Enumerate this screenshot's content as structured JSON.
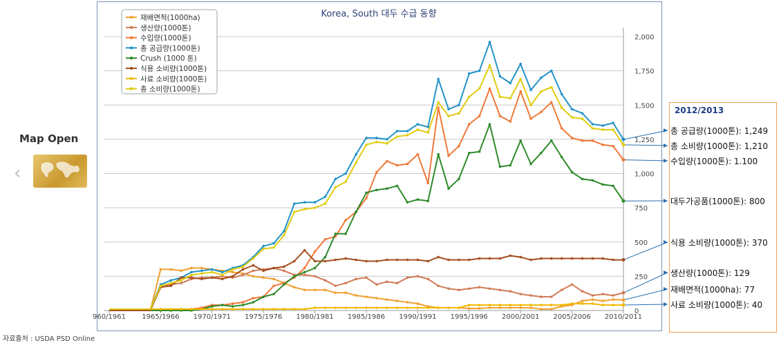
{
  "ui": {
    "map_open": "Map Open",
    "source": "자료출처 : USDA PSD Online"
  },
  "chart_data": {
    "type": "line",
    "title": "Korea, South 대두 수급 동향",
    "xlabel": "",
    "ylabel": "",
    "ylim": [
      0,
      2000
    ],
    "yticks": [
      "0",
      "250",
      "500",
      "750",
      "1,000",
      "1,250",
      "1,500",
      "1,750",
      "2,000"
    ],
    "grid": true,
    "legend_position": "top-left",
    "x_labels": [
      "1960/1961",
      "1965/1966",
      "1970/1971",
      "1975/1976",
      "1980/1981",
      "1985/1986",
      "1990/1991",
      "1995/1996",
      "2000/2001",
      "2005/2006",
      "2010/2011"
    ],
    "x_label_display": [
      "960/1961",
      "1965/1966",
      "1970/1971",
      "1975/1976",
      "1980/1981",
      "1985/1986",
      "1990/1991",
      "1995/1996",
      "2000/2001",
      "2005/2006",
      "2010/2011"
    ],
    "series": [
      {
        "name": "재배면적(1000ha)",
        "color": "#f0a030",
        "values": [
          0,
          0,
          0,
          0,
          0,
          300,
          300,
          290,
          310,
          310,
          300,
          290,
          280,
          270,
          250,
          240,
          230,
          200,
          170,
          150,
          150,
          150,
          130,
          130,
          110,
          100,
          90,
          80,
          70,
          60,
          50,
          30,
          20,
          20,
          20,
          15,
          15,
          20,
          20,
          20,
          20,
          20,
          10,
          10,
          30,
          40,
          70,
          80,
          70,
          80,
          77
        ]
      },
      {
        "name": "생산량(1000톤)",
        "color": "#d07a55",
        "values": [
          0,
          0,
          0,
          0,
          0,
          180,
          190,
          200,
          230,
          240,
          240,
          250,
          240,
          260,
          290,
          300,
          310,
          290,
          260,
          260,
          250,
          220,
          180,
          200,
          230,
          240,
          190,
          210,
          200,
          240,
          250,
          230,
          180,
          160,
          150,
          160,
          170,
          160,
          150,
          140,
          120,
          110,
          100,
          100,
          150,
          190,
          140,
          110,
          120,
          110,
          129
        ]
      },
      {
        "name": "수입량(1000톤)",
        "color": "#f07838",
        "values": [
          0,
          0,
          0,
          0,
          0,
          10,
          0,
          10,
          10,
          20,
          40,
          40,
          50,
          60,
          90,
          100,
          180,
          200,
          240,
          310,
          430,
          520,
          540,
          660,
          720,
          820,
          1010,
          1090,
          1060,
          1070,
          1140,
          930,
          1480,
          1130,
          1200,
          1360,
          1420,
          1620,
          1420,
          1380,
          1600,
          1400,
          1450,
          1520,
          1330,
          1260,
          1240,
          1240,
          1210,
          1200,
          1100
        ]
      },
      {
        "name": "총 공급량(1000톤)",
        "color": "#2393c8",
        "values": [
          10,
          10,
          10,
          10,
          10,
          190,
          220,
          240,
          280,
          290,
          300,
          280,
          310,
          330,
          390,
          470,
          490,
          580,
          780,
          790,
          790,
          830,
          960,
          1000,
          1140,
          1260,
          1260,
          1250,
          1310,
          1310,
          1360,
          1340,
          1690,
          1470,
          1500,
          1730,
          1750,
          1960,
          1710,
          1660,
          1800,
          1610,
          1700,
          1750,
          1580,
          1470,
          1440,
          1360,
          1350,
          1370,
          1249
        ]
      },
      {
        "name": "Crush (1000 톤)",
        "color": "#2f8a2a",
        "values": [
          0,
          0,
          0,
          0,
          0,
          0,
          0,
          0,
          0,
          10,
          30,
          40,
          30,
          40,
          60,
          100,
          120,
          190,
          250,
          280,
          310,
          390,
          560,
          560,
          720,
          860,
          880,
          890,
          910,
          790,
          810,
          800,
          1140,
          890,
          960,
          1150,
          1160,
          1360,
          1050,
          1060,
          1240,
          1070,
          1150,
          1240,
          1120,
          1010,
          960,
          950,
          920,
          910,
          800
        ]
      },
      {
        "name": "식용 소비량(1000톤)",
        "color": "#a54e1f",
        "values": [
          0,
          0,
          0,
          0,
          0,
          170,
          180,
          240,
          240,
          230,
          240,
          230,
          250,
          300,
          330,
          290,
          310,
          320,
          360,
          440,
          360,
          360,
          370,
          380,
          370,
          360,
          360,
          370,
          370,
          370,
          370,
          360,
          390,
          370,
          370,
          370,
          380,
          380,
          380,
          400,
          390,
          370,
          380,
          380,
          380,
          380,
          380,
          380,
          380,
          370,
          370
        ]
      },
      {
        "name": "사료 소비량(1000톤)",
        "color": "#f2b800",
        "values": [
          10,
          10,
          10,
          10,
          10,
          10,
          10,
          10,
          10,
          10,
          10,
          10,
          10,
          10,
          10,
          10,
          10,
          10,
          10,
          10,
          20,
          20,
          20,
          20,
          20,
          20,
          20,
          20,
          20,
          20,
          20,
          20,
          20,
          20,
          20,
          40,
          40,
          40,
          40,
          40,
          40,
          40,
          40,
          40,
          40,
          50,
          50,
          50,
          40,
          40,
          40
        ]
      },
      {
        "name": "총 소비량(1000톤)",
        "color": "#e0cc10",
        "values": [
          10,
          10,
          10,
          10,
          10,
          180,
          200,
          220,
          260,
          270,
          280,
          260,
          300,
          320,
          380,
          450,
          460,
          550,
          720,
          740,
          750,
          780,
          900,
          940,
          1080,
          1210,
          1230,
          1220,
          1270,
          1280,
          1320,
          1300,
          1520,
          1420,
          1440,
          1560,
          1620,
          1790,
          1560,
          1550,
          1690,
          1500,
          1600,
          1630,
          1480,
          1410,
          1400,
          1330,
          1320,
          1320,
          1210
        ]
      }
    ],
    "annotations": {
      "title": "2012/2013",
      "items": [
        {
          "text": "총 공급량(1000톤): 1,249",
          "value": 1249
        },
        {
          "text": "총 소비량(1000톤): 1,210",
          "value": 1210
        },
        {
          "text": "수입량(1000톤): 1.100",
          "value": 1100
        },
        {
          "text": "대두가공품(1000톤): 800",
          "value": 800
        },
        {
          "text": "식용 소비량(1000톤): 370",
          "value": 370
        },
        {
          "text": "생산량(1000톤): 129",
          "value": 129
        },
        {
          "text": "재배면적(1000ha): 77",
          "value": 77
        },
        {
          "text": "사료 소비량(1000톤): 40",
          "value": 40
        }
      ]
    }
  }
}
